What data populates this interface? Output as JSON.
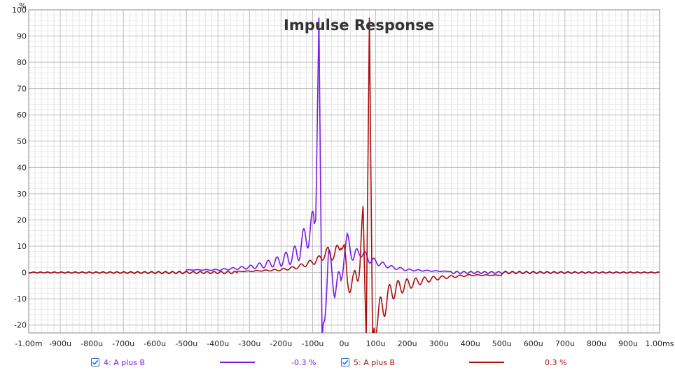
{
  "chart_data": {
    "type": "line",
    "title": "Impulse Response",
    "ylabel": "%",
    "xlim": [
      -1.0,
      1.0
    ],
    "ylim": [
      -23,
      100
    ],
    "x_ticks": [
      "-1.00m",
      "-900u",
      "-800u",
      "-700u",
      "-600u",
      "-500u",
      "-400u",
      "-300u",
      "-200u",
      "-100u",
      "0u",
      "100u",
      "200u",
      "300u",
      "400u",
      "500u",
      "600u",
      "700u",
      "800u",
      "900u",
      "1.00ms"
    ],
    "y_ticks": [
      "-20",
      "-10",
      "0",
      "10",
      "20",
      "30",
      "40",
      "50",
      "60",
      "70",
      "80",
      "90",
      "100"
    ],
    "y_tick_values": [
      -20,
      -10,
      0,
      10,
      20,
      30,
      40,
      50,
      60,
      70,
      80,
      90,
      100
    ],
    "x_unit": "ms",
    "grid": true,
    "series": [
      {
        "name": "4: A plus B",
        "color": "#7a1ae6",
        "checked": true,
        "offset_label": "-0.3 %",
        "peak_time_ms": -0.08,
        "peak_value": 97,
        "points": [
          [
            -0.4,
            1.0
          ],
          [
            -0.35,
            1.5
          ],
          [
            -0.3,
            2.0
          ],
          [
            -0.25,
            3.0
          ],
          [
            -0.2,
            4.5
          ],
          [
            -0.15,
            7
          ],
          [
            -0.12,
            14
          ],
          [
            -0.1,
            17
          ],
          [
            -0.09,
            20
          ],
          [
            -0.08,
            97
          ],
          [
            -0.07,
            -25
          ],
          [
            -0.06,
            -10
          ],
          [
            -0.05,
            5
          ],
          [
            -0.03,
            -5
          ],
          [
            -0.01,
            -3
          ],
          [
            0.0,
            8
          ],
          [
            0.01,
            12
          ],
          [
            0.03,
            6
          ],
          [
            0.05,
            8
          ],
          [
            0.08,
            5
          ],
          [
            0.1,
            4
          ],
          [
            0.15,
            2
          ],
          [
            0.2,
            1
          ],
          [
            0.3,
            0.5
          ],
          [
            0.4,
            0.3
          ]
        ]
      },
      {
        "name": "5: A plus B",
        "color": "#a80e0e",
        "checked": true,
        "offset_label": "0.3 %",
        "peak_time_ms": 0.08,
        "peak_value": 97,
        "points": [
          [
            -0.4,
            0.3
          ],
          [
            -0.3,
            0.5
          ],
          [
            -0.2,
            1
          ],
          [
            -0.15,
            2
          ],
          [
            -0.1,
            4
          ],
          [
            -0.08,
            5
          ],
          [
            -0.05,
            8
          ],
          [
            -0.03,
            6
          ],
          [
            -0.01,
            12
          ],
          [
            0.0,
            8
          ],
          [
            0.01,
            -3
          ],
          [
            0.03,
            -5
          ],
          [
            0.05,
            5
          ],
          [
            0.06,
            19
          ],
          [
            0.07,
            -25
          ],
          [
            0.08,
            97
          ],
          [
            0.09,
            -25
          ],
          [
            0.1,
            -17
          ],
          [
            0.12,
            -14
          ],
          [
            0.15,
            -7
          ],
          [
            0.2,
            -4.5
          ],
          [
            0.25,
            -3
          ],
          [
            0.3,
            -2
          ],
          [
            0.35,
            -1.5
          ],
          [
            0.4,
            -1
          ]
        ]
      }
    ]
  }
}
